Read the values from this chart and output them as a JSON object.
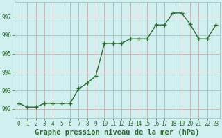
{
  "x": [
    0,
    1,
    2,
    3,
    4,
    5,
    6,
    7,
    8,
    9,
    10,
    11,
    12,
    13,
    14,
    15,
    16,
    17,
    18,
    19,
    20,
    21,
    22,
    23
  ],
  "y": [
    992.3,
    992.1,
    992.1,
    992.3,
    992.3,
    992.3,
    992.3,
    993.1,
    993.4,
    993.8,
    995.55,
    995.55,
    995.55,
    995.8,
    995.8,
    995.8,
    996.55,
    996.55,
    997.2,
    997.2,
    996.6,
    995.8,
    995.8,
    996.55
  ],
  "line_color": "#2d6a2d",
  "marker": "+",
  "markersize": 4,
  "linewidth": 1.0,
  "bg_color": "#d0f0f0",
  "grid_color": "#c0a8a8",
  "xlabel": "Graphe pression niveau de la mer (hPa)",
  "xlabel_fontsize": 7.5,
  "xlabel_fontweight": "bold",
  "ytick_labels": [
    "992",
    "993",
    "994",
    "995",
    "996",
    "997"
  ],
  "ytick_values": [
    992,
    993,
    994,
    995,
    996,
    997
  ],
  "ylim": [
    991.5,
    997.8
  ],
  "xlim": [
    -0.5,
    23.5
  ],
  "xtick_labels": [
    "0",
    "1",
    "2",
    "3",
    "4",
    "5",
    "6",
    "7",
    "8",
    "9",
    "10",
    "11",
    "12",
    "13",
    "14",
    "15",
    "16",
    "17",
    "18",
    "19",
    "20",
    "21",
    "22",
    "23"
  ],
  "tick_fontsize": 5.5,
  "title_color": "#2d6a2d",
  "fig_width": 3.2,
  "fig_height": 2.0
}
